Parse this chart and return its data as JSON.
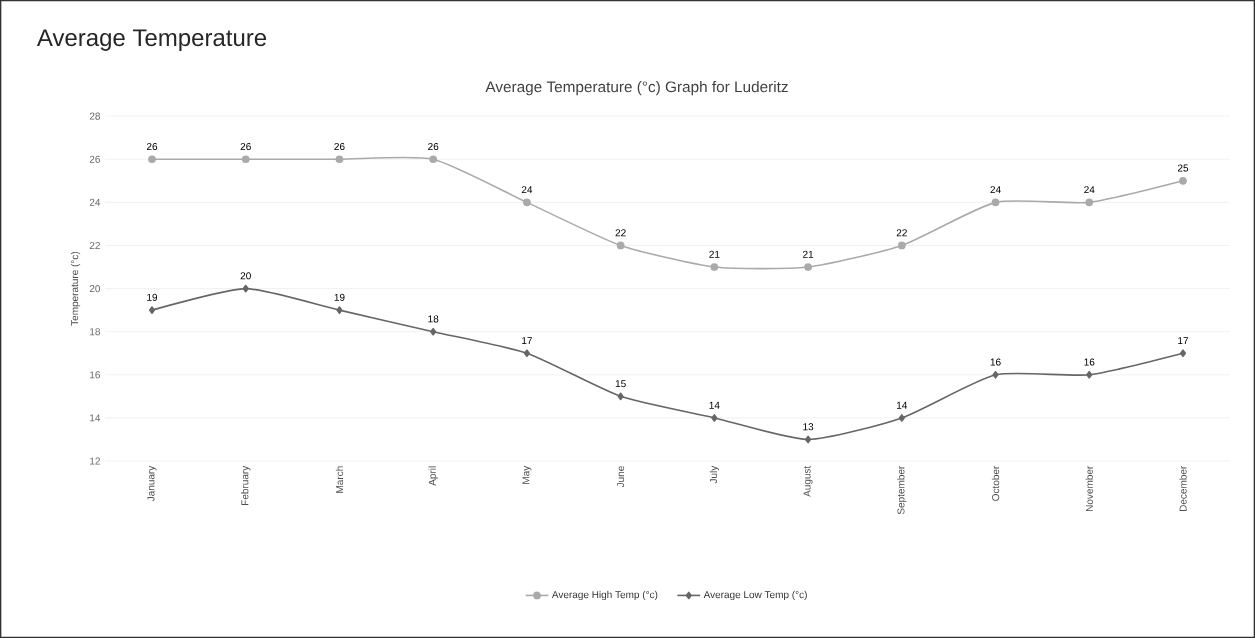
{
  "chart_data": {
    "type": "line",
    "title": "Average Temperature",
    "subtitle": "Average Temperature (°c) Graph for Luderitz",
    "ylabel": "Temperature (°c)",
    "categories": [
      "January",
      "February",
      "March",
      "April",
      "May",
      "June",
      "July",
      "August",
      "September",
      "October",
      "November",
      "December"
    ],
    "series": [
      {
        "name": "Average High Temp (°c)",
        "color": "#aaaaaa",
        "marker": "circle",
        "values": [
          26,
          26,
          26,
          26,
          24,
          22,
          21,
          21,
          22,
          24,
          24,
          25
        ]
      },
      {
        "name": "Average Low Temp (°c)",
        "color": "#666666",
        "marker": "diamond",
        "values": [
          19,
          20,
          19,
          18,
          17,
          15,
          14,
          13,
          14,
          16,
          16,
          17
        ]
      }
    ],
    "ylim": [
      12,
      28
    ],
    "yticks": [
      12,
      14,
      16,
      18,
      20,
      22,
      24,
      26,
      28
    ],
    "grid": "y",
    "legend": "bottom",
    "data_labels": true
  }
}
